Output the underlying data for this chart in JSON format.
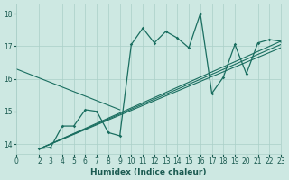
{
  "xlabel": "Humidex (Indice chaleur)",
  "bg_color": "#cde8e2",
  "grid_color": "#aacfc8",
  "line_color": "#1a6e60",
  "xlim": [
    0,
    23
  ],
  "ylim": [
    13.7,
    18.3
  ],
  "yticks": [
    14,
    15,
    16,
    17,
    18
  ],
  "xticks": [
    0,
    2,
    3,
    4,
    5,
    6,
    7,
    8,
    9,
    10,
    11,
    12,
    13,
    14,
    15,
    16,
    17,
    18,
    19,
    20,
    21,
    22,
    23
  ],
  "main_series": {
    "x": [
      2,
      3,
      4,
      5,
      6,
      7,
      8,
      9,
      10,
      11,
      12,
      13,
      14,
      15,
      16,
      17,
      18,
      19,
      20,
      21,
      22,
      23
    ],
    "y": [
      13.85,
      13.9,
      14.55,
      14.55,
      15.05,
      15.0,
      14.35,
      14.25,
      17.05,
      17.55,
      17.1,
      17.45,
      17.25,
      16.95,
      18.0,
      15.55,
      16.05,
      17.05,
      16.15,
      17.1,
      17.2,
      17.15
    ]
  },
  "descending_line": {
    "x": [
      0,
      9
    ],
    "y": [
      16.3,
      15.05
    ]
  },
  "trend_lines": [
    {
      "x": [
        2,
        23
      ],
      "y": [
        13.85,
        17.15
      ]
    },
    {
      "x": [
        2,
        23
      ],
      "y": [
        13.85,
        17.05
      ]
    },
    {
      "x": [
        2,
        23
      ],
      "y": [
        13.85,
        16.95
      ]
    }
  ]
}
